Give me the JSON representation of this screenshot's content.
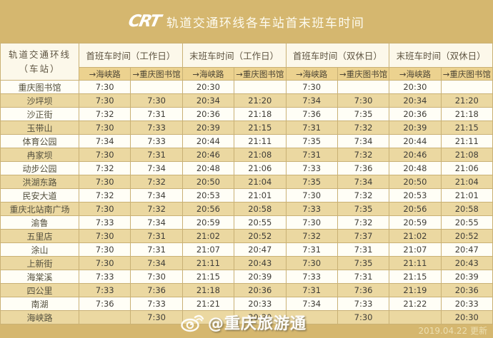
{
  "banner": {
    "logo_text": "CRT",
    "title": "轨道交通环线各车站首末班车时间"
  },
  "table": {
    "station_header_line1": "轨道交通环线",
    "station_header_line2": "（车站）",
    "groups": [
      {
        "label": "首班车时间（工作日）"
      },
      {
        "label": "末班车时间（工作日）"
      },
      {
        "label": "首班车时间（双休日）"
      },
      {
        "label": "末班车时间（双休日）"
      }
    ],
    "direction_headers": [
      "→海峡路",
      "→重庆图书馆",
      "→海峡路",
      "→重庆图书馆",
      "→海峡路",
      "→重庆图书馆",
      "→海峡路",
      "→重庆图书馆"
    ],
    "rows": [
      {
        "station": "重庆图书馆",
        "times": [
          "7:30",
          "",
          "20:30",
          "",
          "7:30",
          "",
          "20:30",
          ""
        ]
      },
      {
        "station": "沙坪坝",
        "times": [
          "7:30",
          "7:30",
          "20:34",
          "21:20",
          "7:34",
          "7:30",
          "20:34",
          "21:20"
        ]
      },
      {
        "station": "沙正街",
        "times": [
          "7:32",
          "7:31",
          "20:36",
          "21:18",
          "7:36",
          "7:35",
          "20:36",
          "21:18"
        ]
      },
      {
        "station": "玉带山",
        "times": [
          "7:30",
          "7:33",
          "20:39",
          "21:15",
          "7:31",
          "7:32",
          "20:39",
          "21:15"
        ]
      },
      {
        "station": "体育公园",
        "times": [
          "7:34",
          "7:33",
          "20:44",
          "21:11",
          "7:35",
          "7:34",
          "20:44",
          "21:11"
        ]
      },
      {
        "station": "冉家坝",
        "times": [
          "7:30",
          "7:31",
          "20:46",
          "21:08",
          "7:31",
          "7:32",
          "20:46",
          "21:08"
        ]
      },
      {
        "station": "动步公园",
        "times": [
          "7:32",
          "7:34",
          "20:48",
          "21:06",
          "7:33",
          "7:36",
          "20:48",
          "21:06"
        ]
      },
      {
        "station": "洪湖东路",
        "times": [
          "7:30",
          "7:32",
          "20:50",
          "21:04",
          "7:35",
          "7:34",
          "20:50",
          "21:04"
        ]
      },
      {
        "station": "民安大道",
        "times": [
          "7:32",
          "7:34",
          "20:53",
          "21:01",
          "7:30",
          "7:32",
          "20:53",
          "21:01"
        ]
      },
      {
        "station": "重庆北站南广场",
        "times": [
          "7:30",
          "7:32",
          "20:56",
          "20:58",
          "7:33",
          "7:35",
          "20:56",
          "20:58"
        ]
      },
      {
        "station": "渝鲁",
        "times": [
          "7:33",
          "7:34",
          "20:59",
          "20:55",
          "7:30",
          "7:32",
          "20:59",
          "20:55"
        ]
      },
      {
        "station": "五里店",
        "times": [
          "7:30",
          "7:31",
          "21:02",
          "20:52",
          "7:32",
          "7:37",
          "21:02",
          "20:52"
        ]
      },
      {
        "station": "涂山",
        "times": [
          "7:30",
          "7:31",
          "21:07",
          "20:47",
          "7:31",
          "7:31",
          "21:07",
          "20:47"
        ]
      },
      {
        "station": "上新街",
        "times": [
          "7:30",
          "7:34",
          "21:11",
          "20:43",
          "7:30",
          "7:35",
          "21:11",
          "20:43"
        ]
      },
      {
        "station": "海棠溪",
        "times": [
          "7:33",
          "7:30",
          "21:15",
          "20:39",
          "7:33",
          "7:31",
          "21:15",
          "20:39"
        ]
      },
      {
        "station": "四公里",
        "times": [
          "7:33",
          "7:36",
          "21:18",
          "20:36",
          "7:31",
          "7:36",
          "21:19",
          "20:36"
        ]
      },
      {
        "station": "南湖",
        "times": [
          "7:36",
          "7:33",
          "21:21",
          "20:33",
          "7:34",
          "7:33",
          "21:22",
          "20:33"
        ]
      },
      {
        "station": "海峡路",
        "times": [
          "",
          "7:30",
          "",
          "20:30",
          "",
          "7:30",
          "",
          "20:30"
        ]
      }
    ]
  },
  "footer": {
    "watermark": "@重庆旅游通",
    "updated": "2019.04.22 更新"
  },
  "colors": {
    "banner_gold": "#d5b76f",
    "row_tan": "#ebd8a1",
    "row_white": "#fffef6",
    "subheader_tan": "#ecd28f",
    "header_cream": "#fcf8ea",
    "station_header_gold": "#d9ab4e",
    "border": "#c9b175"
  }
}
